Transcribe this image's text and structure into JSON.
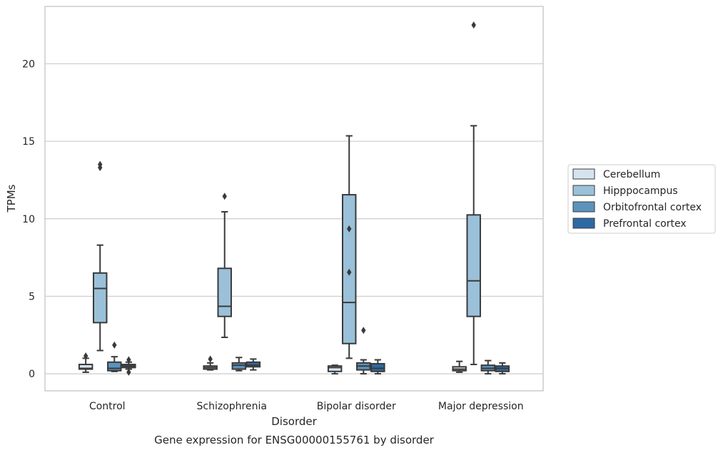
{
  "chart_data": {
    "type": "box",
    "xlabel": "Disorder",
    "ylabel": "TPMs",
    "caption": "Gene expression for ENSG00000155761 by disorder",
    "ylim": [
      -1.1,
      23.7
    ],
    "yticks": [
      0,
      5,
      10,
      15,
      20
    ],
    "grid": "horizontal",
    "legend_position": "right",
    "categories": [
      "Control",
      "Schizophrenia",
      "Bipolar disorder",
      "Major depression"
    ],
    "series": [
      {
        "name": "Cerebellum",
        "color": "#d6e3ef",
        "boxes": [
          {
            "whislo": 0.1,
            "q1": 0.3,
            "med": 0.35,
            "q3": 0.6,
            "whishi": 1.0,
            "fliers": [
              1.15
            ]
          },
          {
            "whislo": 0.25,
            "q1": 0.3,
            "med": 0.4,
            "q3": 0.5,
            "whishi": 0.7,
            "fliers": [
              0.95
            ]
          },
          {
            "whislo": 0.0,
            "q1": 0.15,
            "med": 0.4,
            "q3": 0.5,
            "whishi": 0.55,
            "fliers": []
          },
          {
            "whislo": 0.1,
            "q1": 0.2,
            "med": 0.3,
            "q3": 0.45,
            "whishi": 0.8,
            "fliers": []
          }
        ]
      },
      {
        "name": "Hipppocampus",
        "color": "#9ac1d9",
        "boxes": [
          {
            "whislo": 1.5,
            "q1": 3.3,
            "med": 5.5,
            "q3": 6.5,
            "whishi": 8.3,
            "fliers": [
              13.3,
              13.5
            ]
          },
          {
            "whislo": 2.35,
            "q1": 3.7,
            "med": 4.35,
            "q3": 6.8,
            "whishi": 10.45,
            "fliers": [
              11.45
            ]
          },
          {
            "whislo": 1.0,
            "q1": 1.95,
            "med": 4.6,
            "q3": 11.55,
            "whishi": 15.35,
            "fliers": [
              6.55,
              9.35
            ]
          },
          {
            "whislo": 0.6,
            "q1": 3.7,
            "med": 6.0,
            "q3": 10.25,
            "whishi": 16.0,
            "fliers": [
              22.5
            ]
          }
        ]
      },
      {
        "name": "Orbitofrontal cortex",
        "color": "#5b93bd",
        "boxes": [
          {
            "whislo": 0.15,
            "q1": 0.2,
            "med": 0.35,
            "q3": 0.75,
            "whishi": 1.1,
            "fliers": [
              1.85
            ]
          },
          {
            "whislo": 0.2,
            "q1": 0.3,
            "med": 0.55,
            "q3": 0.7,
            "whishi": 1.05,
            "fliers": []
          },
          {
            "whislo": 0.0,
            "q1": 0.25,
            "med": 0.5,
            "q3": 0.7,
            "whishi": 0.9,
            "fliers": [
              2.8
            ]
          },
          {
            "whislo": 0.0,
            "q1": 0.2,
            "med": 0.35,
            "q3": 0.55,
            "whishi": 0.85,
            "fliers": []
          }
        ]
      },
      {
        "name": "Prefrontal cortex",
        "color": "#2d69a4",
        "boxes": [
          {
            "whislo": 0.3,
            "q1": 0.4,
            "med": 0.5,
            "q3": 0.6,
            "whishi": 0.75,
            "fliers": [
              0.1,
              0.9
            ]
          },
          {
            "whislo": 0.25,
            "q1": 0.45,
            "med": 0.55,
            "q3": 0.75,
            "whishi": 0.95,
            "fliers": []
          },
          {
            "whislo": 0.0,
            "q1": 0.15,
            "med": 0.35,
            "q3": 0.65,
            "whishi": 0.9,
            "fliers": []
          },
          {
            "whislo": 0.0,
            "q1": 0.15,
            "med": 0.35,
            "q3": 0.5,
            "whishi": 0.7,
            "fliers": []
          }
        ]
      }
    ]
  }
}
